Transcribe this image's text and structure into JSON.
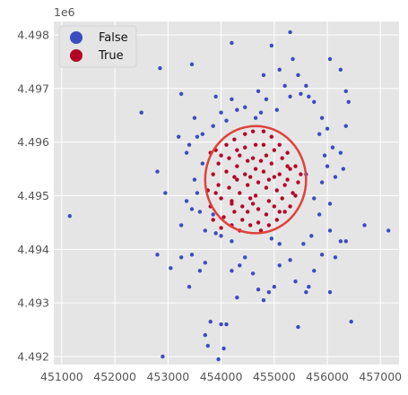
{
  "chart_data": {
    "type": "scatter",
    "title": "",
    "xlabel": "",
    "ylabel": "",
    "y_offset_label": "1e6",
    "xlim": [
      450850,
      457350
    ],
    "ylim": [
      4491850,
      4498250
    ],
    "x_ticks": [
      451000,
      452000,
      453000,
      454000,
      455000,
      456000,
      457000
    ],
    "x_tick_labels": [
      "451000",
      "452000",
      "453000",
      "454000",
      "455000",
      "456000",
      "457000"
    ],
    "y_ticks": [
      4492000,
      4493000,
      4494000,
      4495000,
      4496000,
      4497000,
      4498000
    ],
    "y_tick_labels": [
      "4.492",
      "4.493",
      "4.494",
      "4.495",
      "4.496",
      "4.497",
      "4.498"
    ],
    "grid": true,
    "background": "#e5e5e5",
    "legend": {
      "placement": "top-left",
      "entries": [
        {
          "label": "False",
          "color": "#3b4cc0"
        },
        {
          "label": "True",
          "color": "#b40426"
        }
      ]
    },
    "circle": {
      "center": [
        454650,
        4495300
      ],
      "radius_x": 950,
      "radius_y": 1000,
      "color": "#e0413a"
    },
    "series": [
      {
        "name": "False",
        "color": "#3b4cc0",
        "points": [
          [
            451150,
            4494620
          ],
          [
            452500,
            4496550
          ],
          [
            452850,
            4497380
          ],
          [
            452800,
            4493900
          ],
          [
            452900,
            4492000
          ],
          [
            453050,
            4493650
          ],
          [
            452950,
            4495050
          ],
          [
            452800,
            4495450
          ],
          [
            453250,
            4496900
          ],
          [
            453200,
            4496100
          ],
          [
            453350,
            4495800
          ],
          [
            453250,
            4494450
          ],
          [
            453250,
            4493850
          ],
          [
            453400,
            4493300
          ],
          [
            453450,
            4493900
          ],
          [
            453450,
            4497450
          ],
          [
            453500,
            4496450
          ],
          [
            453650,
            4496150
          ],
          [
            453550,
            4495050
          ],
          [
            453600,
            4494700
          ],
          [
            453700,
            4494350
          ],
          [
            453650,
            4495600
          ],
          [
            453450,
            4494750
          ],
          [
            453350,
            4494900
          ],
          [
            453500,
            4495300
          ],
          [
            453550,
            4496100
          ],
          [
            453400,
            4495950
          ],
          [
            453700,
            4493750
          ],
          [
            453600,
            4493600
          ],
          [
            453800,
            4492650
          ],
          [
            453700,
            4492400
          ],
          [
            453750,
            4492200
          ],
          [
            453950,
            4491950
          ],
          [
            454000,
            4492600
          ],
          [
            454050,
            4492150
          ],
          [
            454100,
            4492600
          ],
          [
            454200,
            4493600
          ],
          [
            454300,
            4493100
          ],
          [
            454350,
            4493700
          ],
          [
            454450,
            4493850
          ],
          [
            454600,
            4493550
          ],
          [
            454700,
            4493250
          ],
          [
            454800,
            4493050
          ],
          [
            454900,
            4493200
          ],
          [
            455000,
            4493300
          ],
          [
            455100,
            4493700
          ],
          [
            455300,
            4493800
          ],
          [
            455400,
            4493400
          ],
          [
            455450,
            4492550
          ],
          [
            455600,
            4493200
          ],
          [
            455650,
            4493300
          ],
          [
            455750,
            4493600
          ],
          [
            456050,
            4493200
          ],
          [
            455900,
            4493900
          ],
          [
            456150,
            4493850
          ],
          [
            456250,
            4494150
          ],
          [
            456450,
            4492650
          ],
          [
            456350,
            4494150
          ],
          [
            456700,
            4494450
          ],
          [
            457150,
            4494350
          ],
          [
            455550,
            4494100
          ],
          [
            455700,
            4494250
          ],
          [
            455100,
            4494100
          ],
          [
            454950,
            4494200
          ],
          [
            454200,
            4494150
          ],
          [
            454000,
            4494250
          ],
          [
            453900,
            4494300
          ],
          [
            453850,
            4494650
          ],
          [
            455850,
            4494650
          ],
          [
            456050,
            4494350
          ],
          [
            456050,
            4494850
          ],
          [
            456150,
            4495350
          ],
          [
            456300,
            4495500
          ],
          [
            455950,
            4495750
          ],
          [
            456100,
            4495900
          ],
          [
            455850,
            4496150
          ],
          [
            456000,
            4496250
          ],
          [
            455900,
            4496450
          ],
          [
            456250,
            4495800
          ],
          [
            456350,
            4496300
          ],
          [
            456400,
            4496750
          ],
          [
            455750,
            4496750
          ],
          [
            455650,
            4496850
          ],
          [
            455600,
            4497050
          ],
          [
            455500,
            4496900
          ],
          [
            455300,
            4496850
          ],
          [
            455200,
            4497050
          ],
          [
            455450,
            4497250
          ],
          [
            455350,
            4497550
          ],
          [
            455100,
            4497350
          ],
          [
            455050,
            4496600
          ],
          [
            454850,
            4496800
          ],
          [
            454700,
            4496950
          ],
          [
            454450,
            4496650
          ],
          [
            454300,
            4496600
          ],
          [
            454200,
            4496800
          ],
          [
            454000,
            4496550
          ],
          [
            453900,
            4496850
          ],
          [
            453850,
            4496300
          ],
          [
            454100,
            4496400
          ],
          [
            454650,
            4496450
          ],
          [
            454750,
            4496550
          ],
          [
            454800,
            4497250
          ],
          [
            454950,
            4497800
          ],
          [
            455300,
            4498050
          ],
          [
            454200,
            4497850
          ],
          [
            456050,
            4497550
          ],
          [
            456250,
            4497350
          ],
          [
            456350,
            4496950
          ],
          [
            455750,
            4494950
          ],
          [
            455900,
            4495250
          ],
          [
            456000,
            4495550
          ],
          [
            455600,
            4495400
          ]
        ]
      },
      {
        "name": "True",
        "color": "#b40426",
        "points": [
          [
            453800,
            4495800
          ],
          [
            453850,
            4495400
          ],
          [
            453750,
            4495100
          ],
          [
            453800,
            4494800
          ],
          [
            453850,
            4494550
          ],
          [
            453900,
            4495850
          ],
          [
            453950,
            4495600
          ],
          [
            453950,
            4495200
          ],
          [
            454000,
            4494950
          ],
          [
            454050,
            4494600
          ],
          [
            454000,
            4494400
          ],
          [
            454100,
            4495950
          ],
          [
            454150,
            4495700
          ],
          [
            454100,
            4495450
          ],
          [
            454150,
            4495150
          ],
          [
            454200,
            4494900
          ],
          [
            454250,
            4494700
          ],
          [
            454200,
            4494450
          ],
          [
            454250,
            4496050
          ],
          [
            454300,
            4495850
          ],
          [
            454300,
            4495550
          ],
          [
            454300,
            4495300
          ],
          [
            454350,
            4495050
          ],
          [
            454400,
            4494800
          ],
          [
            454400,
            4494550
          ],
          [
            454350,
            4494350
          ],
          [
            454450,
            4496150
          ],
          [
            454450,
            4495900
          ],
          [
            454500,
            4495650
          ],
          [
            454450,
            4495400
          ],
          [
            454500,
            4495200
          ],
          [
            454550,
            4494950
          ],
          [
            454500,
            4494700
          ],
          [
            454550,
            4494450
          ],
          [
            454600,
            4496200
          ],
          [
            454650,
            4495950
          ],
          [
            454600,
            4495700
          ],
          [
            454650,
            4495500
          ],
          [
            454700,
            4495250
          ],
          [
            454650,
            4495000
          ],
          [
            454700,
            4494750
          ],
          [
            454700,
            4494500
          ],
          [
            454750,
            4494350
          ],
          [
            454800,
            4496200
          ],
          [
            454800,
            4495950
          ],
          [
            454850,
            4495750
          ],
          [
            454800,
            4495450
          ],
          [
            454850,
            4495150
          ],
          [
            454900,
            4494900
          ],
          [
            454850,
            4494650
          ],
          [
            454900,
            4494450
          ],
          [
            454950,
            4496100
          ],
          [
            455000,
            4495850
          ],
          [
            454950,
            4495600
          ],
          [
            455000,
            4495350
          ],
          [
            455050,
            4495100
          ],
          [
            455000,
            4494800
          ],
          [
            455050,
            4494550
          ],
          [
            455100,
            4495950
          ],
          [
            455150,
            4495700
          ],
          [
            455100,
            4495400
          ],
          [
            455200,
            4495200
          ],
          [
            455150,
            4494950
          ],
          [
            455200,
            4494700
          ],
          [
            455250,
            4495800
          ],
          [
            455300,
            4495500
          ],
          [
            455250,
            4495300
          ],
          [
            455350,
            4495050
          ],
          [
            455300,
            4494800
          ],
          [
            455400,
            4495550
          ],
          [
            455450,
            4495250
          ],
          [
            455400,
            4495000
          ],
          [
            455500,
            4495400
          ],
          [
            454250,
            4495350
          ],
          [
            454550,
            4495350
          ],
          [
            454750,
            4495650
          ],
          [
            454900,
            4495300
          ],
          [
            454350,
            4495750
          ],
          [
            454600,
            4494850
          ],
          [
            455100,
            4494700
          ],
          [
            454200,
            4494850
          ],
          [
            455250,
            4495550
          ],
          [
            453900,
            4495050
          ],
          [
            454000,
            4495750
          ]
        ]
      }
    ]
  }
}
